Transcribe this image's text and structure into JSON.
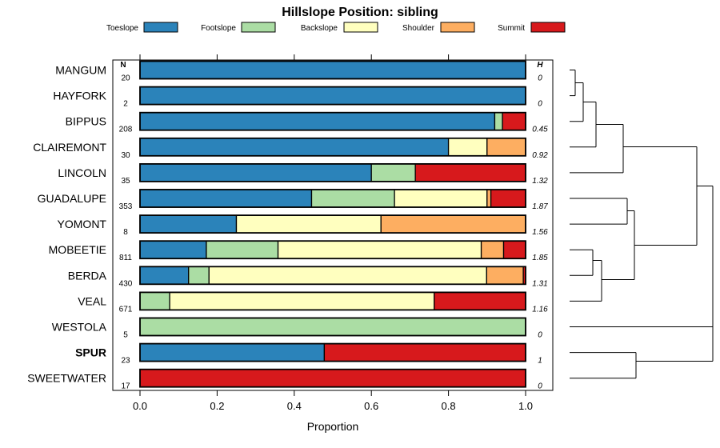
{
  "chart_data": {
    "type": "bar",
    "stacked": true,
    "orientation": "horizontal",
    "title": "Hillslope Position: sibling",
    "xlabel": "Proportion",
    "ylabel": "",
    "xlim": [
      0,
      1
    ],
    "x_ticks": [
      "0.0",
      "0.2",
      "0.4",
      "0.6",
      "0.8",
      "1.0"
    ],
    "n_header": "N",
    "h_header": "H",
    "legend": [
      {
        "name": "Toeslope",
        "color": "#2b83ba"
      },
      {
        "name": "Footslope",
        "color": "#abdda4"
      },
      {
        "name": "Backslope",
        "color": "#ffffbf"
      },
      {
        "name": "Shoulder",
        "color": "#fdae61"
      },
      {
        "name": "Summit",
        "color": "#d7191c"
      }
    ],
    "rows": [
      {
        "label": "MANGUM",
        "bold": false,
        "n": "20",
        "h": "0",
        "values": [
          1.0,
          0,
          0,
          0,
          0
        ]
      },
      {
        "label": "HAYFORK",
        "bold": false,
        "n": "2",
        "h": "0",
        "values": [
          1.0,
          0,
          0,
          0,
          0
        ]
      },
      {
        "label": "BIPPUS",
        "bold": false,
        "n": "208",
        "h": "0.45",
        "values": [
          0.92,
          0.02,
          0,
          0,
          0.06
        ]
      },
      {
        "label": "CLAIREMONT",
        "bold": false,
        "n": "30",
        "h": "0.92",
        "values": [
          0.8,
          0,
          0.1,
          0.1,
          0
        ]
      },
      {
        "label": "LINCOLN",
        "bold": false,
        "n": "35",
        "h": "1.32",
        "values": [
          0.6,
          0.114,
          0,
          0,
          0.286
        ]
      },
      {
        "label": "GUADALUPE",
        "bold": false,
        "n": "353",
        "h": "1.87",
        "values": [
          0.445,
          0.215,
          0.24,
          0.01,
          0.09
        ]
      },
      {
        "label": "YOMONT",
        "bold": false,
        "n": "8",
        "h": "1.56",
        "values": [
          0.25,
          0,
          0.375,
          0.375,
          0
        ]
      },
      {
        "label": "MOBEETIE",
        "bold": false,
        "n": "811",
        "h": "1.85",
        "values": [
          0.172,
          0.186,
          0.527,
          0.058,
          0.057
        ]
      },
      {
        "label": "BERDA",
        "bold": false,
        "n": "430",
        "h": "1.31",
        "values": [
          0.126,
          0.053,
          0.72,
          0.095,
          0.006
        ]
      },
      {
        "label": "VEAL",
        "bold": false,
        "n": "671",
        "h": "1.16",
        "values": [
          0,
          0.077,
          0.686,
          0,
          0.237
        ]
      },
      {
        "label": "WESTOLA",
        "bold": false,
        "n": "5",
        "h": "0",
        "values": [
          0,
          1.0,
          0,
          0,
          0
        ]
      },
      {
        "label": "SPUR",
        "bold": true,
        "n": "23",
        "h": "1",
        "values": [
          0.478,
          0,
          0,
          0,
          0.522
        ]
      },
      {
        "label": "SWEETWATER",
        "bold": false,
        "n": "17",
        "h": "0",
        "values": [
          0,
          0,
          0,
          0,
          1.0
        ]
      }
    ]
  }
}
